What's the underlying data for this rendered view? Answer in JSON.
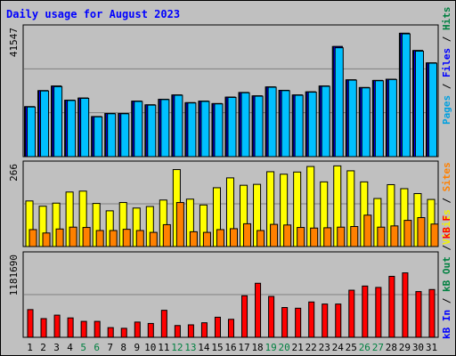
{
  "title": "Daily usage for August 2023",
  "panels": {
    "hits_max_label": "41547",
    "sites_max_label": "266",
    "kb_max_label": "1181690",
    "right_labels": {
      "top": [
        {
          "text": "Pages",
          "color": "#00a0e0"
        },
        {
          "text": " / ",
          "color": "#000000"
        },
        {
          "text": "Files",
          "color": "#0000ff"
        },
        {
          "text": " / ",
          "color": "#000000"
        },
        {
          "text": "Hits",
          "color": "#008040"
        }
      ],
      "middle": [
        {
          "text": "Visits",
          "color": "#f0f000"
        },
        {
          "text": " / ",
          "color": "#000000"
        },
        {
          "text": "Sites",
          "color": "#ff8000"
        }
      ],
      "bottom": [
        {
          "text": "kB In",
          "color": "#0000ff"
        },
        {
          "text": " / ",
          "color": "#000000"
        },
        {
          "text": "kB Out",
          "color": "#008040"
        },
        {
          "text": " / ",
          "color": "#000000"
        },
        {
          "text": "kB F",
          "color": "#ff0000"
        }
      ]
    }
  },
  "chart_data": {
    "type": "bar",
    "title": "Daily usage for August 2023",
    "categories": [
      "1",
      "2",
      "3",
      "4",
      "5",
      "6",
      "7",
      "8",
      "9",
      "10",
      "11",
      "12",
      "13",
      "14",
      "15",
      "16",
      "17",
      "18",
      "19",
      "20",
      "21",
      "22",
      "23",
      "24",
      "25",
      "26",
      "27",
      "28",
      "29",
      "30",
      "31"
    ],
    "weekend_days": [
      "5",
      "6",
      "12",
      "13",
      "19",
      "20",
      "26",
      "27"
    ],
    "colors": {
      "hits": "#008040",
      "files": "#0000ff",
      "pages": "#00c0ff",
      "visits": "#ffff00",
      "sites": "#ff8000",
      "kbf": "#ff0000",
      "weekday_label": "#000000",
      "weekend_label": "#008040"
    },
    "hits_panel": {
      "ylim": [
        0,
        41547
      ],
      "series": [
        {
          "name": "Hits",
          "values": [
            16200,
            21400,
            22900,
            18300,
            19000,
            13000,
            14000,
            14000,
            18000,
            16800,
            18600,
            20000,
            17500,
            18000,
            17200,
            19300,
            20800,
            19700,
            22600,
            21500,
            20000,
            21000,
            22900,
            35700,
            24900,
            22400,
            24700,
            25100,
            40000,
            34400,
            30400
          ]
        },
        {
          "name": "Files",
          "values": [
            16200,
            21400,
            22900,
            18300,
            19000,
            13000,
            14000,
            14000,
            18000,
            16800,
            18600,
            20000,
            17500,
            18000,
            17200,
            19300,
            20800,
            19700,
            22600,
            21500,
            20000,
            21000,
            22900,
            35700,
            24900,
            22400,
            24700,
            25100,
            40000,
            34400,
            30400
          ]
        },
        {
          "name": "Pages",
          "values": [
            16100,
            21300,
            22700,
            18200,
            18900,
            12900,
            13900,
            13900,
            17900,
            16700,
            18500,
            19900,
            17400,
            17900,
            17100,
            19200,
            20700,
            19600,
            22500,
            21400,
            19900,
            20900,
            22800,
            35300,
            24800,
            22300,
            24600,
            25000,
            39800,
            34200,
            30300
          ]
        }
      ]
    },
    "visits_panel": {
      "ylim": [
        0,
        266
      ],
      "series": [
        {
          "name": "Visits",
          "values": [
            148,
            131,
            141,
            177,
            180,
            140,
            116,
            143,
            125,
            130,
            151,
            250,
            154,
            135,
            191,
            223,
            199,
            202,
            243,
            235,
            242,
            260,
            210,
            262,
            246,
            210,
            156,
            201,
            188,
            172,
            153
          ]
        },
        {
          "name": "Sites",
          "values": [
            55,
            44,
            57,
            63,
            62,
            52,
            52,
            56,
            52,
            46,
            71,
            143,
            48,
            46,
            55,
            58,
            74,
            52,
            72,
            70,
            62,
            60,
            61,
            63,
            65,
            102,
            63,
            67,
            85,
            94,
            73
          ]
        }
      ]
    },
    "kb_panel": {
      "ylim": [
        0,
        1181690
      ],
      "series": [
        {
          "name": "kB F",
          "values": [
            400000,
            270000,
            320000,
            280000,
            230000,
            230000,
            140000,
            130000,
            220000,
            200000,
            390000,
            170000,
            180000,
            210000,
            290000,
            260000,
            600000,
            780000,
            590000,
            430000,
            420000,
            510000,
            480000,
            480000,
            680000,
            740000,
            720000,
            880000,
            930000,
            660000,
            690000
          ]
        }
      ]
    }
  }
}
